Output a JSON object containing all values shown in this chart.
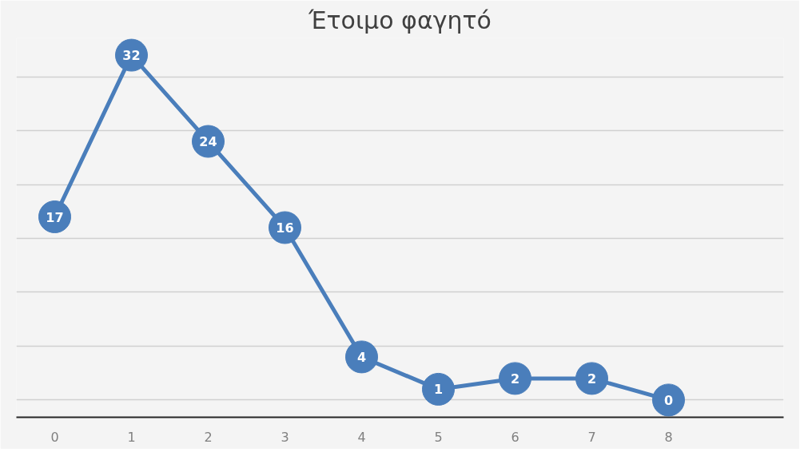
{
  "chart_data": {
    "type": "line",
    "title": "Έτοιμο φαγητό",
    "categories": [
      "0",
      "1",
      "2",
      "3",
      "4",
      "5",
      "6",
      "7",
      "8",
      null
    ],
    "series": [
      {
        "color": "#4a7ebb",
        "values": [
          17,
          32,
          24,
          16,
          4,
          1,
          2,
          2,
          0,
          null
        ]
      }
    ],
    "tick_labels": "x",
    "grid": "y",
    "marker": "circle",
    "data_labels": true
  }
}
